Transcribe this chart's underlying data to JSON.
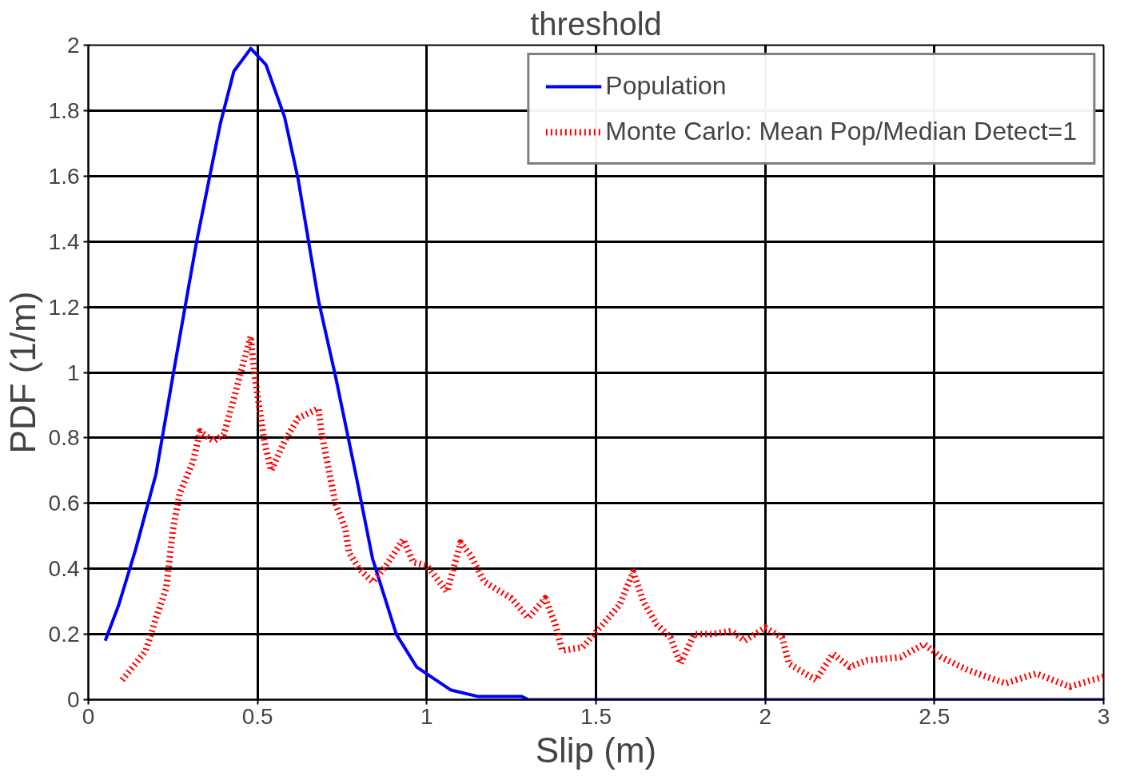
{
  "chart_data": {
    "type": "line",
    "title": "threshold",
    "xlabel": "Slip (m)",
    "ylabel": "PDF (1/m)",
    "xlim": [
      0,
      3
    ],
    "ylim": [
      0,
      2
    ],
    "xticks": [
      0,
      0.5,
      1,
      1.5,
      2,
      2.5,
      3
    ],
    "yticks": [
      0,
      0.2,
      0.4,
      0.6,
      0.8,
      1,
      1.2,
      1.4,
      1.6,
      1.8,
      2
    ],
    "grid": true,
    "legend": "top right",
    "series": [
      {
        "name": "Population",
        "color": "#0000ff",
        "line_style": "solid",
        "x": [
          0.05,
          0.09,
          0.14,
          0.2,
          0.25,
          0.32,
          0.39,
          0.43,
          0.48,
          0.525,
          0.58,
          0.62,
          0.68,
          0.73,
          0.79,
          0.84,
          0.91,
          0.97,
          1.07,
          1.15,
          1.28,
          1.3,
          3.0
        ],
        "values": [
          0.18,
          0.29,
          0.46,
          0.69,
          0.99,
          1.4,
          1.76,
          1.92,
          1.99,
          1.94,
          1.78,
          1.59,
          1.22,
          0.99,
          0.69,
          0.43,
          0.2,
          0.1,
          0.03,
          0.01,
          0.01,
          0,
          0
        ]
      },
      {
        "name": "Monte Carlo: Mean Pop/Median Detect=1",
        "color": "#ff0000",
        "line_style": "dotted",
        "x": [
          0.1,
          0.17,
          0.2,
          0.23,
          0.25,
          0.27,
          0.31,
          0.33,
          0.37,
          0.4,
          0.43,
          0.45,
          0.48,
          0.49,
          0.51,
          0.52,
          0.54,
          0.58,
          0.62,
          0.68,
          0.69,
          0.73,
          0.76,
          0.77,
          0.8,
          0.84,
          0.88,
          0.93,
          0.96,
          1.0,
          1.06,
          1.1,
          1.13,
          1.17,
          1.25,
          1.3,
          1.35,
          1.38,
          1.4,
          1.46,
          1.52,
          1.57,
          1.61,
          1.64,
          1.68,
          1.72,
          1.75,
          1.79,
          1.84,
          1.9,
          1.94,
          2.0,
          2.05,
          2.07,
          2.15,
          2.2,
          2.25,
          2.3,
          2.4,
          2.47,
          2.52,
          2.6,
          2.71,
          2.8,
          2.9,
          3.0
        ],
        "values": [
          0.06,
          0.15,
          0.25,
          0.34,
          0.52,
          0.63,
          0.73,
          0.82,
          0.79,
          0.81,
          0.92,
          1.0,
          1.11,
          1.0,
          0.86,
          0.79,
          0.7,
          0.79,
          0.86,
          0.89,
          0.81,
          0.6,
          0.52,
          0.45,
          0.4,
          0.36,
          0.41,
          0.49,
          0.42,
          0.41,
          0.33,
          0.48,
          0.44,
          0.36,
          0.31,
          0.25,
          0.31,
          0.23,
          0.15,
          0.16,
          0.23,
          0.29,
          0.39,
          0.3,
          0.23,
          0.19,
          0.11,
          0.2,
          0.2,
          0.21,
          0.18,
          0.22,
          0.19,
          0.11,
          0.06,
          0.14,
          0.1,
          0.12,
          0.13,
          0.17,
          0.13,
          0.09,
          0.05,
          0.08,
          0.04,
          0.07
        ]
      }
    ]
  }
}
